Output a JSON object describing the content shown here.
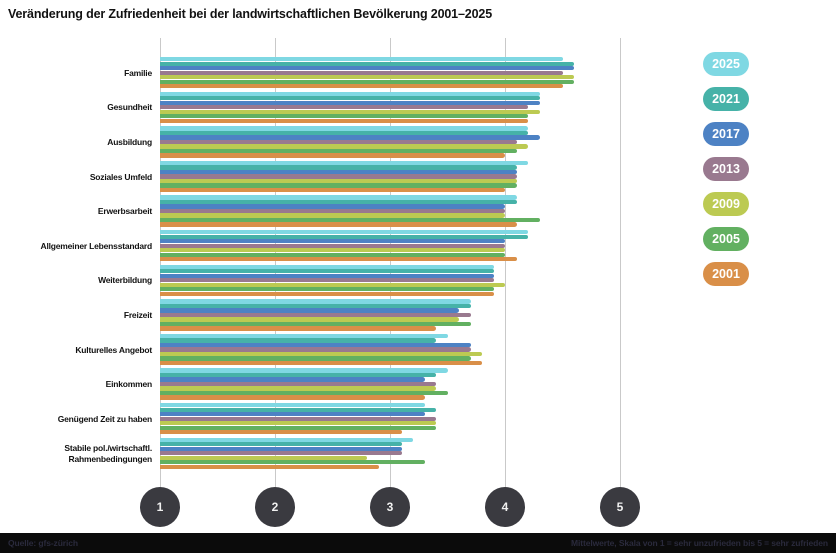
{
  "title": "Veränderung der Zufriedenheit bei der landwirtschaftlichen Bevölkerung 2001–2025",
  "footer": {
    "source": "Quelle: gfs-zürich",
    "note": "Mittelwerte, Skala von 1 = sehr unzufrieden bis 5 = sehr zufrieden"
  },
  "colors": {
    "grid": "#c9c9c9",
    "axis_circle": "#3a3a40",
    "title_text": "#121212",
    "footer_bg": "#0b0b0b"
  },
  "chart_data": {
    "type": "bar",
    "orientation": "horizontal",
    "title": "Veränderung der Zufriedenheit bei der landwirtschaftlichen Bevölkerung 2001–2025",
    "xlabel": "",
    "ylabel": "",
    "xlim": [
      1,
      5
    ],
    "x_ticks": [
      1,
      2,
      3,
      4,
      5
    ],
    "grid": true,
    "legend_position": "right",
    "categories": [
      "Familie",
      "Gesundheit",
      "Ausbildung",
      "Soziales Umfeld",
      "Erwerbsarbeit",
      "Allgemeiner Lebensstandard",
      "Weiterbildung",
      "Freizeit",
      "Kulturelles Angebot",
      "Einkommen",
      "Genügend Zeit zu haben",
      "Stabile pol./wirtschaftl.\nRahmenbedingungen"
    ],
    "series": [
      {
        "name": "2025",
        "color": "#7fd8e3",
        "values": [
          4.5,
          4.3,
          4.2,
          4.2,
          4.1,
          4.2,
          3.9,
          3.7,
          3.5,
          3.5,
          3.3,
          3.2
        ]
      },
      {
        "name": "2021",
        "color": "#46b2a8",
        "values": [
          4.6,
          4.3,
          4.2,
          4.1,
          4.1,
          4.2,
          3.9,
          3.7,
          3.4,
          3.4,
          3.4,
          3.1
        ]
      },
      {
        "name": "2017",
        "color": "#4d82c4",
        "values": [
          4.6,
          4.3,
          4.3,
          4.1,
          4.0,
          4.0,
          3.9,
          3.6,
          3.7,
          3.3,
          3.3,
          3.1
        ]
      },
      {
        "name": "2013",
        "color": "#99798f",
        "values": [
          4.5,
          4.2,
          4.1,
          4.1,
          4.0,
          4.0,
          3.9,
          3.7,
          3.7,
          3.4,
          3.4,
          3.1
        ]
      },
      {
        "name": "2009",
        "color": "#bcca52",
        "values": [
          4.6,
          4.3,
          4.2,
          4.1,
          4.0,
          4.0,
          4.0,
          3.6,
          3.8,
          3.4,
          3.4,
          2.8
        ]
      },
      {
        "name": "2005",
        "color": "#62b061",
        "values": [
          4.6,
          4.2,
          4.1,
          4.1,
          4.3,
          4.0,
          3.9,
          3.7,
          3.7,
          3.5,
          3.4,
          3.3
        ]
      },
      {
        "name": "2001",
        "color": "#d98f48",
        "values": [
          4.5,
          4.2,
          4.0,
          4.0,
          4.1,
          4.1,
          3.9,
          3.4,
          3.8,
          3.3,
          3.1,
          2.9
        ]
      }
    ]
  }
}
